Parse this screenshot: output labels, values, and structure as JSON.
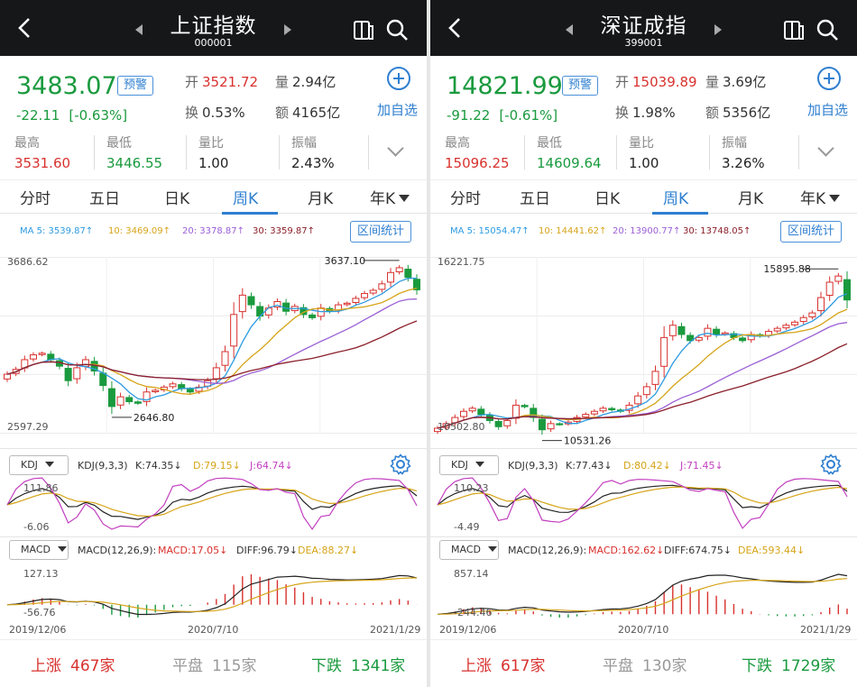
{
  "panels": [
    {
      "title": "上证指数",
      "code": "000001",
      "price": "3483.07",
      "warn": "预警",
      "change": "-22.11",
      "change_pct": "[-0.63%]",
      "open_label": "开",
      "open_value": "3521.72",
      "volume_label": "量",
      "volume_value": "2.94亿",
      "turnover_label": "换",
      "turnover_value": "0.53%",
      "amount_label": "额",
      "amount_value": "4165亿",
      "add_label": "加自选",
      "stats": [
        {
          "label": "最高",
          "value": "3531.60",
          "color": "#d8312e"
        },
        {
          "label": "最低",
          "value": "3446.55",
          "color": "#1a9a3e"
        },
        {
          "label": "量比",
          "value": "1.00",
          "color": "#222222"
        },
        {
          "label": "振幅",
          "value": "2.43%",
          "color": "#222222"
        }
      ],
      "tabs": [
        "分时",
        "五日",
        "日K",
        "周K",
        "月K",
        "年K"
      ],
      "active_tab": "周K",
      "ma": [
        {
          "text": "MA 5: 3539.87↑",
          "color": "#2d9be0"
        },
        {
          "text": "10: 3469.09↑",
          "color": "#d6a418"
        },
        {
          "text": "20: 3378.87↑",
          "color": "#9a5fd6"
        },
        {
          "text": "30: 3359.87↑",
          "color": "#8b1f2a"
        }
      ],
      "range_label": "区间统计",
      "main_top": "3686.62",
      "main_bottom": "2597.29",
      "max_mark": "3637.10",
      "min_mark": "2646.80",
      "kdj_select": "KDJ",
      "kdj_param": "KDJ(9,3,3)",
      "kdj_k": "K:74.35↓",
      "kdj_d": "D:79.15↓",
      "kdj_j": "J:64.74↓",
      "kdj_top": "111.86",
      "kdj_bottom": "-6.06",
      "macd_select": "MACD",
      "macd_param": "MACD(12,26,9):",
      "macd_v": "MACD:17.05↓",
      "macd_diff": "DIFF:96.79↓",
      "macd_dea": "DEA:88.27↓",
      "macd_top": "127.13",
      "macd_bottom": "-56.76",
      "dates": [
        "2019/12/06",
        "2020/7/10",
        "2021/1/29"
      ],
      "up_label": "上涨",
      "up_count": "467家",
      "flat_label": "平盘",
      "flat_count": "115家",
      "down_label": "下跌",
      "down_count": "1341家"
    },
    {
      "title": "深证成指",
      "code": "399001",
      "price": "14821.99",
      "warn": "预警",
      "change": "-91.22",
      "change_pct": "[-0.61%]",
      "open_label": "开",
      "open_value": "15039.89",
      "volume_label": "量",
      "volume_value": "3.69亿",
      "turnover_label": "换",
      "turnover_value": "1.98%",
      "amount_label": "额",
      "amount_value": "5356亿",
      "add_label": "加自选",
      "stats": [
        {
          "label": "最高",
          "value": "15096.25",
          "color": "#d8312e"
        },
        {
          "label": "最低",
          "value": "14609.64",
          "color": "#1a9a3e"
        },
        {
          "label": "量比",
          "value": "1.00",
          "color": "#222222"
        },
        {
          "label": "振幅",
          "value": "3.26%",
          "color": "#222222"
        }
      ],
      "tabs": [
        "分时",
        "五日",
        "日K",
        "周K",
        "月K",
        "年K"
      ],
      "active_tab": "周K",
      "ma": [
        {
          "text": "MA 5: 15054.47↑",
          "color": "#2d9be0"
        },
        {
          "text": "10: 14441.62↑",
          "color": "#d6a418"
        },
        {
          "text": "20: 13900.77↑",
          "color": "#9a5fd6"
        },
        {
          "text": "30: 13748.05↑",
          "color": "#8b1f2a"
        }
      ],
      "range_label": "区间统计",
      "main_top": "16221.75",
      "main_bottom": "10502.80",
      "max_mark": "15895.88",
      "min_mark": "10531.26",
      "kdj_select": "KDJ",
      "kdj_param": "KDJ(9,3,3)",
      "kdj_k": "K:77.43↓",
      "kdj_d": "D:80.42↓",
      "kdj_j": "J:71.45↓",
      "kdj_top": "110.23",
      "kdj_bottom": "-4.49",
      "macd_select": "MACD",
      "macd_param": "MACD(12,26,9):",
      "macd_v": "MACD:162.62↓",
      "macd_diff": "DIFF:674.75↓",
      "macd_dea": "DEA:593.44↓",
      "macd_top": "857.14",
      "macd_bottom": "-244.46",
      "dates": [
        "2019/12/06",
        "2020/7/10",
        "2021/1/29"
      ],
      "up_label": "上涨",
      "up_count": "617家",
      "flat_label": "平盘",
      "flat_count": "130家",
      "down_label": "下跌",
      "down_count": "1729家"
    }
  ],
  "chart_data": [
    {
      "type": "candlestick",
      "series_ref": "上证指数 周K",
      "ylim": [
        2597.29,
        3686.62
      ],
      "closes": [
        2960,
        2990,
        3050,
        3080,
        3090,
        3050,
        3010,
        2920,
        3000,
        3050,
        2980,
        2890,
        2760,
        2820,
        2790,
        2780,
        2850,
        2860,
        2880,
        2900,
        2870,
        2850,
        2880,
        2920,
        3000,
        3100,
        3330,
        3450,
        3390,
        3320,
        3370,
        3410,
        3350,
        3380,
        3330,
        3310,
        3370,
        3350,
        3390,
        3400,
        3430,
        3460,
        3480,
        3520,
        3590,
        3620,
        3560,
        3483
      ],
      "ma_colors": [
        "#2d9be0",
        "#d6a418",
        "#9a5fd6",
        "#8b1f2a"
      ]
    },
    {
      "type": "candlestick",
      "series_ref": "深证成指 周K",
      "ylim": [
        10502.8,
        16221.75
      ],
      "closes": [
        10650,
        10800,
        11000,
        11200,
        11300,
        11100,
        10900,
        10700,
        10900,
        11400,
        11350,
        11000,
        10600,
        10800,
        10780,
        10850,
        11000,
        11100,
        11200,
        11300,
        11250,
        11200,
        11400,
        11700,
        12000,
        12500,
        13600,
        14000,
        13700,
        13500,
        13600,
        13900,
        13700,
        13750,
        13600,
        13500,
        13700,
        13650,
        13800,
        13900,
        14000,
        14100,
        14250,
        14400,
        14900,
        15400,
        15600,
        14822
      ],
      "ma_colors": [
        "#2d9be0",
        "#d6a418",
        "#9a5fd6",
        "#8b1f2a"
      ]
    }
  ],
  "colors": {
    "accent": "#2f7fd1",
    "up": "#d8312e",
    "down": "#1a9a3e",
    "header": "#161719"
  }
}
